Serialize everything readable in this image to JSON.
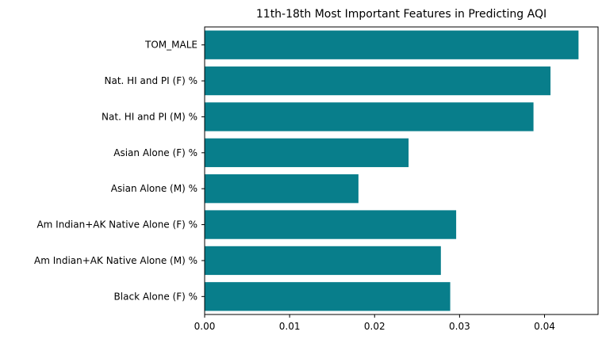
{
  "chart_data": {
    "type": "bar",
    "orientation": "horizontal",
    "title": "11th-18th Most Important Features in Predicting AQI",
    "xlabel": "",
    "ylabel": "",
    "categories": [
      "TOM_MALE",
      "Nat. HI and PI (F) %",
      "Nat. HI and PI (M) %",
      "Asian Alone (F) %",
      "Asian Alone (M) %",
      "Am Indian+AK Native Alone (F) %",
      "Am Indian+AK Native Alone (M) %",
      "Black Alone (F) %"
    ],
    "values": [
      0.044,
      0.0407,
      0.0387,
      0.024,
      0.0181,
      0.0296,
      0.0278,
      0.0289
    ],
    "xlim": [
      0,
      0.0463
    ],
    "xticks": [
      0.0,
      0.01,
      0.02,
      0.03,
      0.04
    ],
    "xtick_labels": [
      "0.00",
      "0.01",
      "0.02",
      "0.03",
      "0.04"
    ],
    "bar_color": "#087e8b",
    "grid": false,
    "legend": "none"
  }
}
